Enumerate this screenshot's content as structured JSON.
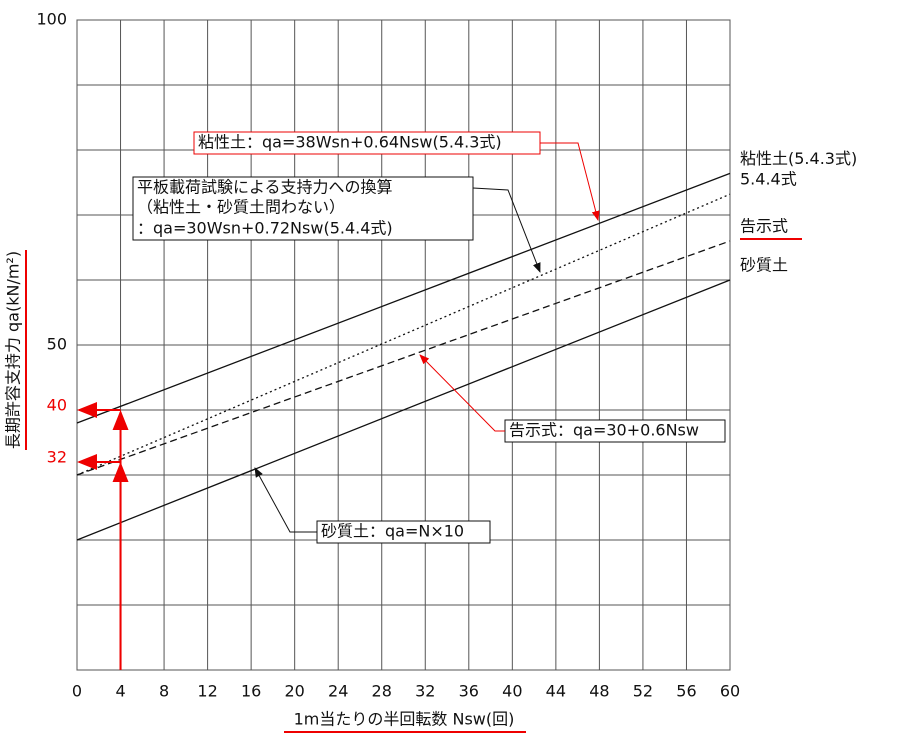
{
  "chart_data": {
    "type": "line",
    "xlabel": "1m当たりの半回転数 Nsw(回)",
    "ylabel": "長期許容支持力 qa(kN/m²)",
    "x": [
      0,
      60
    ],
    "series": [
      {
        "name": "粘性土(5.4.3式)",
        "color": "#111111",
        "dash": "solid",
        "values": [
          38,
          76.4
        ]
      },
      {
        "name": "5.4.4式",
        "color": "#111111",
        "dash": "dotted",
        "values": [
          30,
          73.2
        ]
      },
      {
        "name": "告示式",
        "color": "#111111",
        "dash": "dashed",
        "values": [
          30,
          66
        ]
      },
      {
        "name": "砂質土",
        "color": "#111111",
        "dash": "solid",
        "values": [
          20,
          60
        ]
      }
    ],
    "xlim": [
      0,
      60
    ],
    "ylim": [
      0,
      100
    ],
    "xticks": [
      0,
      4,
      8,
      12,
      16,
      20,
      24,
      28,
      32,
      36,
      40,
      44,
      48,
      52,
      56,
      60
    ],
    "yticks": [
      50,
      100
    ],
    "ygrid": [
      0,
      10,
      20,
      30,
      40,
      50,
      60,
      70,
      80,
      90,
      100
    ],
    "grid": true,
    "markers": [
      {
        "x": 4,
        "y": 40
      },
      {
        "x": 4,
        "y": 32
      }
    ],
    "annotations": [
      [
        "粘性土：qa=38Wsn+0.64Nsw(5.4.3式)"
      ],
      [
        "平板載荷試験による支持力への換算",
        "（粘性土・砂質土問わない）",
        "：qa=30Wsn+0.72Nsw(5.4.4式)"
      ],
      [
        "告示式：qa=30+0.6Nsw"
      ],
      [
        "砂質土：qa=N×10"
      ]
    ]
  }
}
